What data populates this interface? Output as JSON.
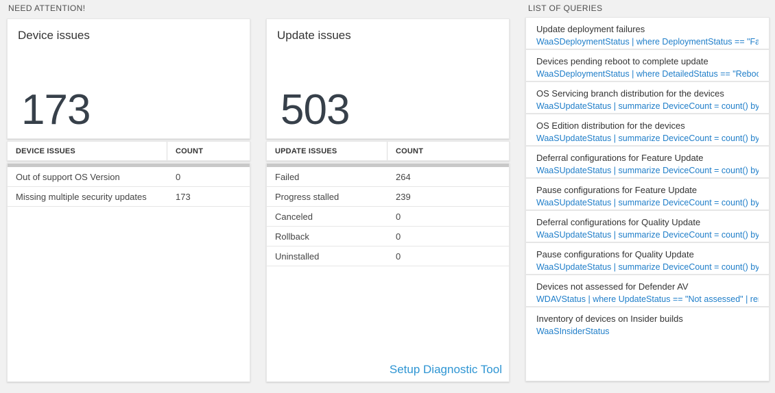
{
  "colors": {
    "query_blue": "#1f7ec9",
    "link_blue": "#2e95d3",
    "big_number": "#37404a",
    "page_background": "#f1f1f1"
  },
  "sections": {
    "need_attention_header": "NEED ATTENTION!",
    "queries_header": "LIST OF QUERIES"
  },
  "device_tile": {
    "title": "Device issues",
    "value": "173"
  },
  "device_table": {
    "columns": [
      "DEVICE ISSUES",
      "COUNT"
    ],
    "rows": [
      {
        "label": "Out of support OS Version",
        "count": "0"
      },
      {
        "label": "Missing multiple security updates",
        "count": "173"
      }
    ]
  },
  "update_tile": {
    "title": "Update issues",
    "value": "503"
  },
  "update_table": {
    "columns": [
      "UPDATE ISSUES",
      "COUNT"
    ],
    "rows": [
      {
        "label": "Failed",
        "count": "264"
      },
      {
        "label": "Progress stalled",
        "count": "239"
      },
      {
        "label": "Canceled",
        "count": "0"
      },
      {
        "label": "Rollback",
        "count": "0"
      },
      {
        "label": "Uninstalled",
        "count": "0"
      }
    ]
  },
  "diagnostic_link_label": "Setup Diagnostic Tool",
  "query_list": {
    "items": [
      {
        "title": "Update deployment failures",
        "query": "WaaSDeploymentStatus | where DeploymentStatus == \"Failed\" |..."
      },
      {
        "title": "Devices pending reboot to complete update",
        "query": "WaaSDeploymentStatus | where DetailedStatus == \"Reboot pend..."
      },
      {
        "title": "OS Servicing branch distribution for the devices",
        "query": "WaaSUpdateStatus | summarize DeviceCount = count() by OSSer..."
      },
      {
        "title": "OS Edition distribution for the devices",
        "query": "WaaSUpdateStatus | summarize DeviceCount = count() by OSEdit..."
      },
      {
        "title": "Deferral configurations for Feature Update",
        "query": "WaaSUpdateStatus | summarize DeviceCount = count() by Featur..."
      },
      {
        "title": "Pause configurations for Feature Update",
        "query": "WaaSUpdateStatus | summarize DeviceCount = count() by Featur..."
      },
      {
        "title": "Deferral configurations for Quality Update",
        "query": "WaaSUpdateStatus | summarize DeviceCount = count() by Qualit..."
      },
      {
        "title": "Pause configurations for Quality Update",
        "query": "WaaSUpdateStatus | summarize DeviceCount = count() by Qualit..."
      },
      {
        "title": "Devices not assessed for Defender AV",
        "query": "WDAVStatus | where UpdateStatus == \"Not assessed\" | render ta..."
      },
      {
        "title": "Inventory of devices on Insider builds",
        "query": "WaaSInsiderStatus"
      }
    ]
  }
}
